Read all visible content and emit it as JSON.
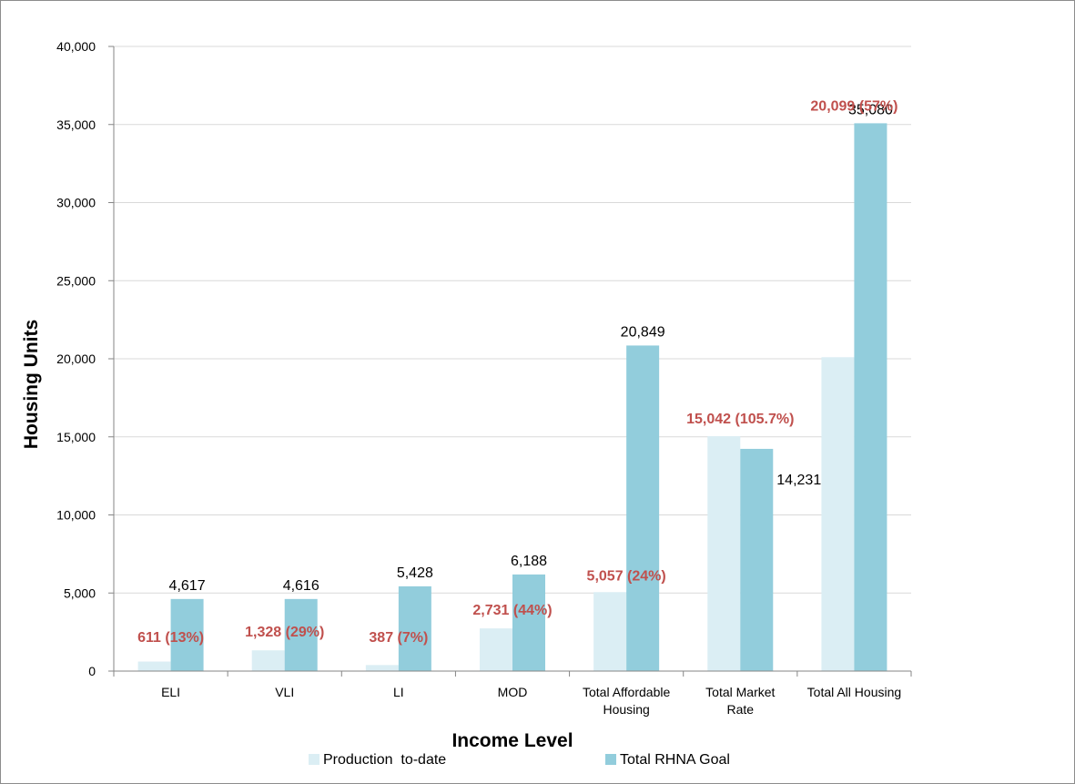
{
  "chart_data": {
    "type": "bar",
    "categories": [
      "ELI",
      "VLI",
      "LI",
      "MOD",
      "Total Affordable Housing",
      "Total Market Rate",
      "Total All Housing"
    ],
    "category_lines": [
      [
        "ELI"
      ],
      [
        "VLI"
      ],
      [
        "LI"
      ],
      [
        "MOD"
      ],
      [
        "Total Affordable",
        "Housing"
      ],
      [
        "Total Market",
        "Rate"
      ],
      [
        "Total All Housing"
      ]
    ],
    "series": [
      {
        "name": "Production  to-date",
        "color": "#dbeef4",
        "values": [
          611,
          1328,
          387,
          2731,
          5057,
          15042,
          20099
        ],
        "labels": [
          "611 (13%)",
          "1,328 (29%)",
          "387 (7%)",
          "2,731 (44%)",
          "5,057 (24%)",
          "15,042 (105.7%)",
          "20,099 (57%)"
        ],
        "label_color": "#c0504d"
      },
      {
        "name": "Total RHNA Goal",
        "color": "#92cddc",
        "values": [
          4617,
          4616,
          5428,
          6188,
          20849,
          14231,
          35080
        ],
        "labels": [
          "4,617",
          "4,616",
          "5,428",
          "6,188",
          "20,849",
          "14,231",
          "35,080"
        ],
        "label_color": "#000000"
      }
    ],
    "title": "",
    "xlabel": "Income Level",
    "ylabel": "Housing Units",
    "ylim": [
      0,
      40000
    ],
    "yticks": [
      0,
      5000,
      10000,
      15000,
      20000,
      25000,
      30000,
      35000,
      40000
    ],
    "ytick_labels": [
      "0",
      "5,000",
      "10,000",
      "15,000",
      "20,000",
      "25,000",
      "30,000",
      "35,000",
      "40,000"
    ],
    "grid": true,
    "legend": "bottom"
  }
}
